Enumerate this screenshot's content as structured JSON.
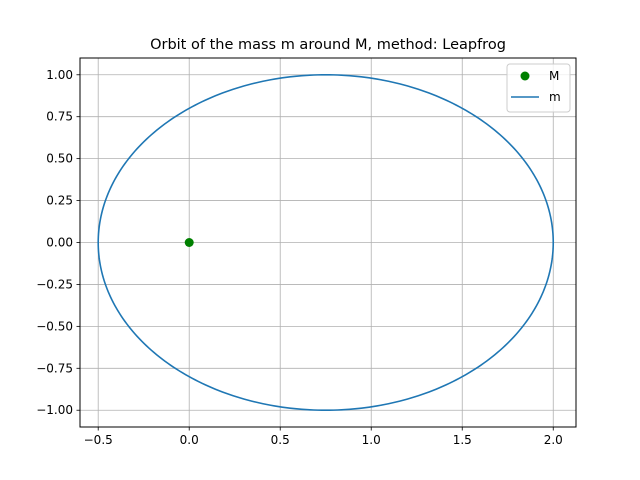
{
  "chart_data": {
    "type": "scatter",
    "title": "Orbit of the mass m around M, method: Leapfrog",
    "xlabel": "",
    "ylabel": "",
    "xlim": [
      -0.6,
      2.125
    ],
    "ylim": [
      -1.1,
      1.1
    ],
    "grid": true,
    "legend_position": "top-right",
    "x_ticks": [
      -0.5,
      0.0,
      0.5,
      1.0,
      1.5,
      2.0
    ],
    "x_tick_labels": [
      "−0.5",
      "0.0",
      "0.5",
      "1.0",
      "1.5",
      "2.0"
    ],
    "y_ticks": [
      -1.0,
      -0.75,
      -0.5,
      -0.25,
      0.0,
      0.25,
      0.5,
      0.75,
      1.0
    ],
    "y_tick_labels": [
      "−1.00",
      "−0.75",
      "−0.50",
      "−0.25",
      "0.00",
      "0.25",
      "0.50",
      "0.75",
      "1.00"
    ],
    "series": [
      {
        "name": "M",
        "kind": "point",
        "color": "#008000",
        "points": [
          {
            "x": 0.0,
            "y": 0.0
          }
        ]
      },
      {
        "name": "m",
        "kind": "orbit",
        "color": "#1f77b4",
        "center": {
          "x": 0.75,
          "y": 0.0
        },
        "semi_axis_x": 1.25,
        "semi_axis_y": 1.0
      }
    ]
  }
}
